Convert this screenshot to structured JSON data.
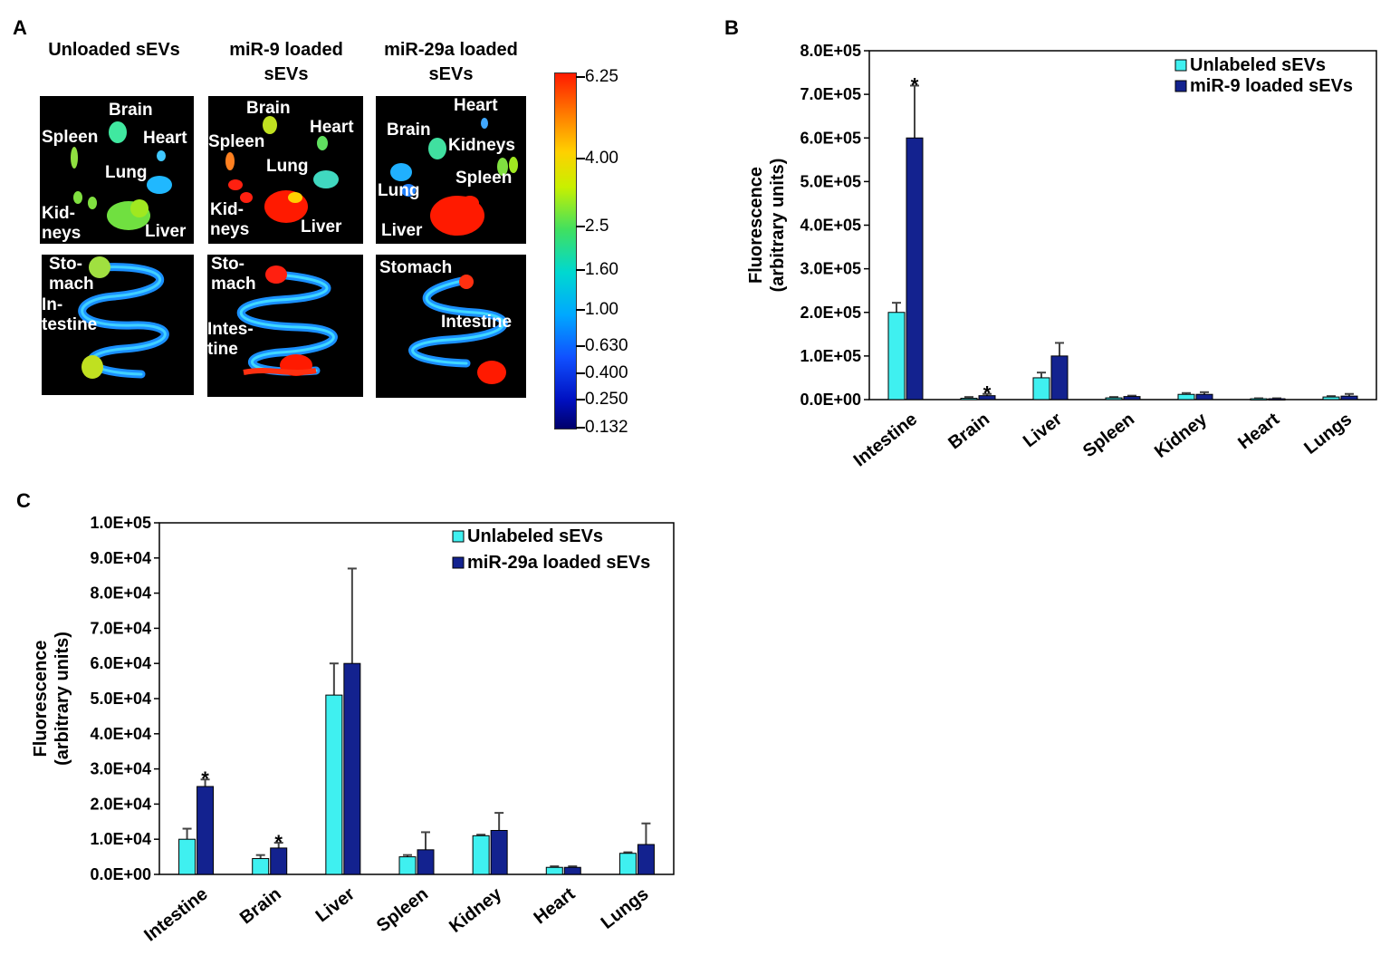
{
  "panel_a": {
    "label": "A",
    "columns": [
      {
        "title": "Unloaded sEVs"
      },
      {
        "title": "miR-9 loaded sEVs"
      },
      {
        "title": "miR-29a loaded sEVs"
      }
    ],
    "organ_labels": {
      "t1": [
        "Brain",
        "Spleen",
        "Heart",
        "Lung",
        "Kid-\nneys",
        "Liver"
      ],
      "t2": [
        "Brain",
        "Heart",
        "Spleen",
        "Lung",
        "Kid-\nneys",
        "Liver"
      ],
      "t3": [
        "Heart",
        "Brain",
        "Kidneys",
        "Spleen",
        "Lung",
        "Liver"
      ],
      "t4": [
        "Sto-\nmach",
        "In-\ntestine"
      ],
      "t5": [
        "Sto-\nmach",
        "Intes-\ntine"
      ],
      "t6": [
        "Stomach",
        "Intestine"
      ]
    },
    "colorbar_ticks": [
      "6.25",
      "4.00",
      "2.5",
      "1.60",
      "1.00",
      "0.630",
      "0.400",
      "0.250",
      "0.132"
    ]
  },
  "chart_data": [
    {
      "panel": "B",
      "type": "bar",
      "title": "",
      "categories": [
        "Intestine",
        "Brain",
        "Liver",
        "Spleen",
        "Kidney",
        "Heart",
        "Lungs"
      ],
      "series": [
        {
          "name": "Unlabeled sEVs",
          "color": "#3ff0f0",
          "values": [
            200000,
            3000,
            50000,
            4000,
            12000,
            2000,
            6000
          ],
          "errors": [
            22000,
            3000,
            12000,
            2000,
            3000,
            1000,
            2000
          ]
        },
        {
          "name": "miR-9 loaded sEVs",
          "color": "#13228f",
          "values": [
            600000,
            9000,
            100000,
            7000,
            12000,
            2000,
            8000
          ],
          "errors": [
            120000,
            4000,
            30000,
            2000,
            5000,
            1000,
            5000
          ]
        }
      ],
      "significance": [
        {
          "category": "Intestine",
          "series": 1,
          "mark": "*"
        },
        {
          "category": "Brain",
          "series": 1,
          "mark": "*"
        }
      ],
      "xlabel": "",
      "ylabel": [
        "Fluorescence",
        "(arbitrary units)"
      ],
      "ylim": [
        0,
        800000
      ],
      "ytick_values": [
        0,
        100000,
        200000,
        300000,
        400000,
        500000,
        600000,
        700000,
        800000
      ],
      "ytick_labels": [
        "0.0E+00",
        "1.0E+05",
        "2.0E+05",
        "3.0E+05",
        "4.0E+05",
        "5.0E+05",
        "6.0E+05",
        "7.0E+05",
        "8.0E+05"
      ],
      "legend": "top-right",
      "grid": false
    },
    {
      "panel": "C",
      "type": "bar",
      "title": "",
      "categories": [
        "Intestine",
        "Brain",
        "Liver",
        "Spleen",
        "Kidney",
        "Heart",
        "Lungs"
      ],
      "series": [
        {
          "name": "Unlabeled sEVs",
          "color": "#3ff0f0",
          "values": [
            10000,
            4500,
            51000,
            5000,
            11000,
            2000,
            6000
          ],
          "errors": [
            3000,
            1000,
            9000,
            500,
            300,
            300,
            300
          ]
        },
        {
          "name": "miR-29a loaded sEVs",
          "color": "#13228f",
          "values": [
            25000,
            7500,
            60000,
            7000,
            12500,
            2000,
            8500
          ],
          "errors": [
            2000,
            1500,
            27000,
            5000,
            5000,
            300,
            6000
          ]
        }
      ],
      "significance": [
        {
          "category": "Intestine",
          "series": 1,
          "mark": "*"
        },
        {
          "category": "Brain",
          "series": 1,
          "mark": "*"
        }
      ],
      "xlabel": "",
      "ylabel": [
        "Fluorescence",
        "(arbitrary units)"
      ],
      "ylim": [
        0,
        100000
      ],
      "ytick_values": [
        0,
        10000,
        20000,
        30000,
        40000,
        50000,
        60000,
        70000,
        80000,
        90000,
        100000
      ],
      "ytick_labels": [
        "0.0E+00",
        "1.0E+04",
        "2.0E+04",
        "3.0E+04",
        "4.0E+04",
        "5.0E+04",
        "6.0E+04",
        "7.0E+04",
        "8.0E+04",
        "9.0E+04",
        "1.0E+05"
      ],
      "legend": "top-right",
      "grid": false
    }
  ]
}
